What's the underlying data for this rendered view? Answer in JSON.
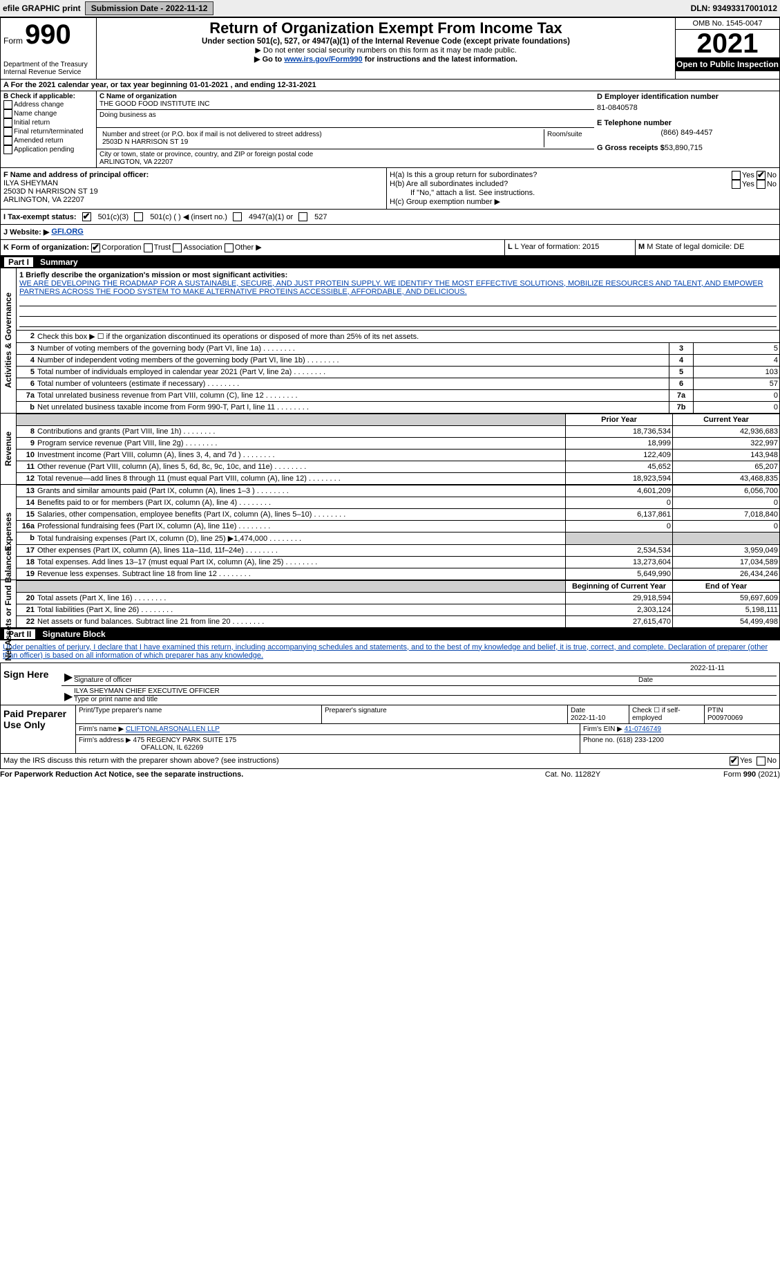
{
  "topbar": {
    "efile": "efile GRAPHIC print",
    "submission_label": "Submission Date - 2022-11-12",
    "dln": "DLN: 93493317001012"
  },
  "header": {
    "form_prefix": "Form",
    "form_number": "990",
    "title": "Return of Organization Exempt From Income Tax",
    "subtitle": "Under section 501(c), 527, or 4947(a)(1) of the Internal Revenue Code (except private foundations)",
    "note1": "▶ Do not enter social security numbers on this form as it may be made public.",
    "note2_pre": "▶ Go to ",
    "note2_link": "www.irs.gov/Form990",
    "note2_post": " for instructions and the latest information.",
    "dept": "Department of the Treasury\nInternal Revenue Service",
    "omb": "OMB No. 1545-0047",
    "year": "2021",
    "open": "Open to Public Inspection"
  },
  "row_a": "A For the 2021 calendar year, or tax year beginning 01-01-2021    , and ending 12-31-2021",
  "section_b": {
    "check_label": "B Check if applicable:",
    "opts": [
      "Address change",
      "Name change",
      "Initial return",
      "Final return/terminated",
      "Amended return",
      "Application pending"
    ],
    "c_label": "C Name of organization",
    "c_name": "THE GOOD FOOD INSTITUTE INC",
    "dba": "Doing business as",
    "street_label": "Number and street (or P.O. box if mail is not delivered to street address)",
    "room_label": "Room/suite",
    "street": "2503D N HARRISON ST 19",
    "city_label": "City or town, state or province, country, and ZIP or foreign postal code",
    "city": "ARLINGTON, VA  22207",
    "d_label": "D Employer identification number",
    "ein": "81-0840578",
    "e_label": "E Telephone number",
    "phone": "(866) 849-4457",
    "g_label": "G Gross receipts $",
    "gross": "53,890,715"
  },
  "section_f": {
    "f_label": "F Name and address of principal officer:",
    "name": "ILYA SHEYMAN",
    "addr1": "2503D N HARRISON ST 19",
    "addr2": "ARLINGTON, VA  22207",
    "ha": "H(a)  Is this a group return for subordinates?",
    "hb": "H(b)  Are all subordinates included?",
    "hb_note": "If \"No,\" attach a list. See instructions.",
    "hc": "H(c)  Group exemption number ▶",
    "yes": "Yes",
    "no": "No"
  },
  "status": {
    "i": "I Tax-exempt status:",
    "opts": [
      "501(c)(3)",
      "501(c) (  ) ◀ (insert no.)",
      "4947(a)(1) or",
      "527"
    ],
    "j": "J Website: ▶",
    "site": "GFI.ORG"
  },
  "k": {
    "label": "K Form of organization:",
    "opts": [
      "Corporation",
      "Trust",
      "Association",
      "Other ▶"
    ],
    "l": "L Year of formation: 2015",
    "m": "M State of legal domicile: DE"
  },
  "part1": {
    "title": "Part I",
    "subtitle": "Summary",
    "side_gov": "Activities & Governance",
    "side_rev": "Revenue",
    "side_exp": "Expenses",
    "side_net": "Net Assets or Fund Balances",
    "q1_label": "1  Briefly describe the organization's mission or most significant activities:",
    "q1_text": "WE ARE DEVELOPING THE ROADMAP FOR A SUSTAINABLE, SECURE, AND JUST PROTEIN SUPPLY. WE IDENTIFY THE MOST EFFECTIVE SOLUTIONS, MOBILIZE RESOURCES AND TALENT, AND EMPOWER PARTNERS ACROSS THE FOOD SYSTEM TO MAKE ALTERNATIVE PROTEINS ACCESSIBLE, AFFORDABLE, AND DELICIOUS.",
    "q2": "Check this box ▶ ☐ if the organization discontinued its operations or disposed of more than 25% of its net assets.",
    "rows_gov": [
      {
        "n": "3",
        "d": "Number of voting members of the governing body (Part VI, line 1a)",
        "c": "3",
        "v": "5"
      },
      {
        "n": "4",
        "d": "Number of independent voting members of the governing body (Part VI, line 1b)",
        "c": "4",
        "v": "4"
      },
      {
        "n": "5",
        "d": "Total number of individuals employed in calendar year 2021 (Part V, line 2a)",
        "c": "5",
        "v": "103"
      },
      {
        "n": "6",
        "d": "Total number of volunteers (estimate if necessary)",
        "c": "6",
        "v": "57"
      },
      {
        "n": "7a",
        "d": "Total unrelated business revenue from Part VIII, column (C), line 12",
        "c": "7a",
        "v": "0"
      },
      {
        "n": "b",
        "d": "Net unrelated business taxable income from Form 990-T, Part I, line 11",
        "c": "7b",
        "v": "0"
      }
    ],
    "hdr_prior": "Prior Year",
    "hdr_curr": "Current Year",
    "rows_rev": [
      {
        "n": "8",
        "d": "Contributions and grants (Part VIII, line 1h)",
        "p": "18,736,534",
        "c": "42,936,683"
      },
      {
        "n": "9",
        "d": "Program service revenue (Part VIII, line 2g)",
        "p": "18,999",
        "c": "322,997"
      },
      {
        "n": "10",
        "d": "Investment income (Part VIII, column (A), lines 3, 4, and 7d )",
        "p": "122,409",
        "c": "143,948"
      },
      {
        "n": "11",
        "d": "Other revenue (Part VIII, column (A), lines 5, 6d, 8c, 9c, 10c, and 11e)",
        "p": "45,652",
        "c": "65,207"
      },
      {
        "n": "12",
        "d": "Total revenue—add lines 8 through 11 (must equal Part VIII, column (A), line 12)",
        "p": "18,923,594",
        "c": "43,468,835"
      }
    ],
    "rows_exp": [
      {
        "n": "13",
        "d": "Grants and similar amounts paid (Part IX, column (A), lines 1–3 )",
        "p": "4,601,209",
        "c": "6,056,700"
      },
      {
        "n": "14",
        "d": "Benefits paid to or for members (Part IX, column (A), line 4)",
        "p": "0",
        "c": "0"
      },
      {
        "n": "15",
        "d": "Salaries, other compensation, employee benefits (Part IX, column (A), lines 5–10)",
        "p": "6,137,861",
        "c": "7,018,840"
      },
      {
        "n": "16a",
        "d": "Professional fundraising fees (Part IX, column (A), line 11e)",
        "p": "0",
        "c": "0"
      },
      {
        "n": "b",
        "d": "Total fundraising expenses (Part IX, column (D), line 25) ▶1,474,000",
        "p": "",
        "c": "",
        "gray": true
      },
      {
        "n": "17",
        "d": "Other expenses (Part IX, column (A), lines 11a–11d, 11f–24e)",
        "p": "2,534,534",
        "c": "3,959,049"
      },
      {
        "n": "18",
        "d": "Total expenses. Add lines 13–17 (must equal Part IX, column (A), line 25)",
        "p": "13,273,604",
        "c": "17,034,589"
      },
      {
        "n": "19",
        "d": "Revenue less expenses. Subtract line 18 from line 12",
        "p": "5,649,990",
        "c": "26,434,246"
      }
    ],
    "hdr_boy": "Beginning of Current Year",
    "hdr_eoy": "End of Year",
    "rows_net": [
      {
        "n": "20",
        "d": "Total assets (Part X, line 16)",
        "p": "29,918,594",
        "c": "59,697,609"
      },
      {
        "n": "21",
        "d": "Total liabilities (Part X, line 26)",
        "p": "2,303,124",
        "c": "5,198,111"
      },
      {
        "n": "22",
        "d": "Net assets or fund balances. Subtract line 21 from line 20",
        "p": "27,615,470",
        "c": "54,499,498"
      }
    ]
  },
  "part2": {
    "title": "Part II",
    "subtitle": "Signature Block",
    "intro": "Under penalties of perjury, I declare that I have examined this return, including accompanying schedules and statements, and to the best of my knowledge and belief, it is true, correct, and complete. Declaration of preparer (other than officer) is based on all information of which preparer has any knowledge.",
    "sign_here": "Sign Here",
    "sig_officer": "Signature of officer",
    "sig_date": "2022-11-11",
    "date_lbl": "Date",
    "officer_name": "ILYA SHEYMAN  CHIEF EXECUTIVE OFFICER",
    "type_name": "Type or print name and title",
    "paid": "Paid Preparer Use Only",
    "prep_name_lbl": "Print/Type preparer's name",
    "prep_sig_lbl": "Preparer's signature",
    "prep_date_lbl": "Date",
    "prep_date": "2022-11-10",
    "prep_check": "Check ☐ if self-employed",
    "ptin_lbl": "PTIN",
    "ptin": "P00970069",
    "firm_name_lbl": "Firm's name    ▶",
    "firm_name": "CLIFTONLARSONALLEN LLP",
    "firm_ein_lbl": "Firm's EIN ▶",
    "firm_ein": "41-0746749",
    "firm_addr_lbl": "Firm's address ▶",
    "firm_addr": "475 REGENCY PARK SUITE 175",
    "firm_city": "OFALLON, IL  62269",
    "firm_phone_lbl": "Phone no.",
    "firm_phone": "(618) 233-1200",
    "discuss": "May the IRS discuss this return with the preparer shown above? (see instructions)",
    "yes": "Yes",
    "no": "No"
  },
  "footer": {
    "pra": "For Paperwork Reduction Act Notice, see the separate instructions.",
    "cat": "Cat. No. 11282Y",
    "form": "Form 990 (2021)"
  }
}
